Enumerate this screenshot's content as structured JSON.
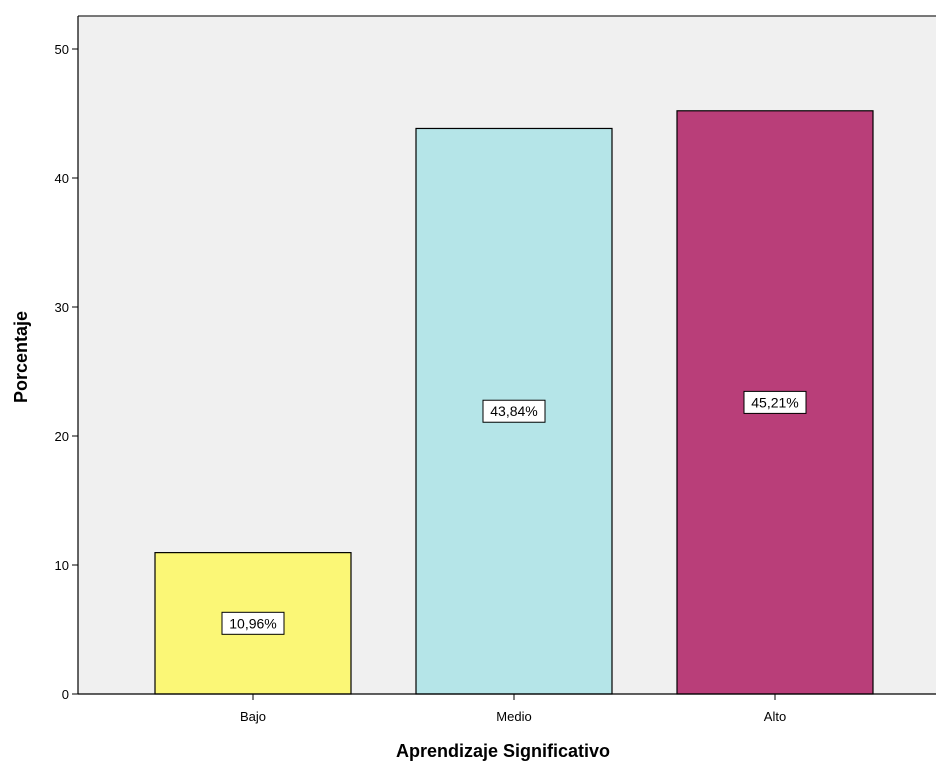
{
  "chart_data": {
    "type": "bar",
    "title": "",
    "xlabel": "Aprendizaje Significativo",
    "ylabel": "Porcentaje",
    "categories": [
      "Bajo",
      "Medio",
      "Alto"
    ],
    "values": [
      10.96,
      43.84,
      45.21
    ],
    "data_labels": [
      "10,96%",
      "43,84%",
      "45,21%"
    ],
    "colors": [
      "#fbf776",
      "#b5e5e8",
      "#b93e79"
    ],
    "ylim": [
      0,
      50
    ],
    "yticks": [
      0,
      10,
      20,
      30,
      40,
      50
    ],
    "ytick_labels": [
      "0",
      "10",
      "20",
      "30",
      "40",
      "50"
    ],
    "grid": false,
    "legend": "none",
    "plot_background": "#f0f0f0",
    "bar_edge_color": "#000000"
  }
}
